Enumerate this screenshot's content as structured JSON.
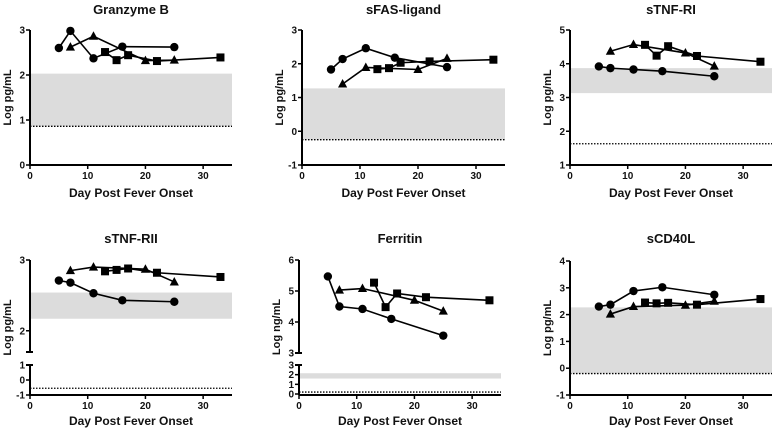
{
  "figure": {
    "series_names": [
      "circle-series",
      "triangle-series",
      "square-series"
    ],
    "colors": {
      "marker": "#000000",
      "band": "#dcdcdc",
      "axis": "#000000",
      "dotted": "#000000"
    }
  },
  "chart_data": [
    {
      "type": "line",
      "title": "Granzyme B",
      "xlabel": "Day Post Fever Onset",
      "ylabel": "Log pg/mL",
      "xlim": [
        0,
        35
      ],
      "xticks": [
        0,
        10,
        20,
        30
      ],
      "ylim": [
        0,
        3
      ],
      "yticks": [
        0,
        1,
        2,
        3
      ],
      "normal_band": [
        0.86,
        2.03
      ],
      "detection_limit": 0.86,
      "series": [
        {
          "name": "circle",
          "marker": "circle",
          "x": [
            5,
            7,
            11,
            16,
            25
          ],
          "y": [
            2.6,
            2.98,
            2.37,
            2.63,
            2.62
          ]
        },
        {
          "name": "triangle",
          "marker": "triangle",
          "x": [
            7,
            11,
            20,
            25
          ],
          "y": [
            2.62,
            2.86,
            2.32,
            2.33
          ]
        },
        {
          "name": "square",
          "marker": "square",
          "x": [
            13,
            15,
            17,
            22,
            33
          ],
          "y": [
            2.51,
            2.33,
            2.44,
            2.31,
            2.39
          ]
        }
      ]
    },
    {
      "type": "line",
      "title": "sFAS-ligand",
      "xlabel": "Day Post Fever Onset",
      "ylabel": "Log pg/mL",
      "xlim": [
        0,
        35
      ],
      "xticks": [
        0,
        10,
        20,
        30
      ],
      "ylim": [
        -1,
        3
      ],
      "yticks": [
        -1,
        0,
        1,
        2,
        3
      ],
      "normal_band": [
        -0.25,
        1.27
      ],
      "detection_limit": -0.25,
      "series": [
        {
          "name": "circle",
          "marker": "circle",
          "x": [
            5,
            7,
            11,
            16,
            25
          ],
          "y": [
            1.83,
            2.14,
            2.46,
            2.18,
            1.9
          ]
        },
        {
          "name": "triangle",
          "marker": "triangle",
          "x": [
            7,
            11,
            20,
            25
          ],
          "y": [
            1.4,
            1.89,
            1.83,
            2.16
          ]
        },
        {
          "name": "square",
          "marker": "square",
          "x": [
            13,
            15,
            17,
            22,
            33
          ],
          "y": [
            1.84,
            1.87,
            2.03,
            2.07,
            2.12
          ]
        }
      ]
    },
    {
      "type": "line",
      "title": "sTNF-RI",
      "xlabel": "Day Post Fever Onset",
      "ylabel": "Log pg/mL",
      "xlim": [
        0,
        35
      ],
      "xticks": [
        0,
        10,
        20,
        30
      ],
      "ylim": [
        1,
        5
      ],
      "yticks": [
        1,
        2,
        3,
        4,
        5
      ],
      "normal_band": [
        3.13,
        3.87
      ],
      "detection_limit": 1.63,
      "series": [
        {
          "name": "circle",
          "marker": "circle",
          "x": [
            5,
            7,
            11,
            16,
            25
          ],
          "y": [
            3.92,
            3.87,
            3.83,
            3.78,
            3.63
          ]
        },
        {
          "name": "triangle",
          "marker": "triangle",
          "x": [
            7,
            11,
            20,
            25
          ],
          "y": [
            4.37,
            4.57,
            4.32,
            3.93
          ]
        },
        {
          "name": "square",
          "marker": "square",
          "x": [
            13,
            15,
            17,
            22,
            33
          ],
          "y": [
            4.56,
            4.24,
            4.52,
            4.23,
            4.06
          ]
        }
      ]
    },
    {
      "type": "line",
      "title": "sTNF-RII",
      "xlabel": "Day Post Fever Onset",
      "ylabel": "Log pg/mL",
      "xlim": [
        0,
        35
      ],
      "xticks": [
        0,
        10,
        20,
        30
      ],
      "broken_axis": true,
      "ylim_upper": [
        1.7,
        3
      ],
      "yticks_upper": [
        2,
        3
      ],
      "ylim_lower": [
        -1,
        1
      ],
      "yticks_lower": [
        -1,
        0,
        1
      ],
      "normal_band": [
        2.17,
        2.54
      ],
      "detection_limit": -0.55,
      "series": [
        {
          "name": "circle",
          "marker": "circle",
          "x": [
            5,
            7,
            11,
            16,
            25
          ],
          "y": [
            2.71,
            2.68,
            2.53,
            2.43,
            2.41
          ]
        },
        {
          "name": "triangle",
          "marker": "triangle",
          "x": [
            7,
            11,
            20,
            25
          ],
          "y": [
            2.85,
            2.9,
            2.87,
            2.69
          ]
        },
        {
          "name": "square",
          "marker": "square",
          "x": [
            13,
            15,
            17,
            22,
            33
          ],
          "y": [
            2.84,
            2.86,
            2.88,
            2.82,
            2.76
          ]
        }
      ]
    },
    {
      "type": "line",
      "title": "Ferritin",
      "xlabel": "Day Post Fever Onset",
      "ylabel": "Log ng/mL",
      "xlim": [
        0,
        35
      ],
      "xticks": [
        0,
        10,
        20,
        30
      ],
      "broken_axis": true,
      "ylim_upper": [
        3,
        6
      ],
      "yticks_upper": [
        3,
        4,
        5,
        6
      ],
      "ylim_lower": [
        0,
        3
      ],
      "yticks_lower": [
        0,
        1,
        2,
        3
      ],
      "normal_band": [
        1.6,
        2.15
      ],
      "detection_limit": 0.2,
      "series": [
        {
          "name": "circle",
          "marker": "circle",
          "x": [
            5,
            7,
            11,
            16,
            25
          ],
          "y": [
            5.47,
            4.5,
            4.42,
            4.1,
            3.56
          ]
        },
        {
          "name": "triangle",
          "marker": "triangle",
          "x": [
            7,
            11,
            20,
            25
          ],
          "y": [
            5.03,
            5.08,
            4.7,
            4.35
          ]
        },
        {
          "name": "square",
          "marker": "square",
          "x": [
            13,
            15,
            17,
            22,
            33
          ],
          "y": [
            5.27,
            4.48,
            4.92,
            4.8,
            4.7
          ]
        }
      ]
    },
    {
      "type": "line",
      "title": "sCD40L",
      "xlabel": "Day Post Fever Onset",
      "ylabel": "Log pg/mL",
      "xlim": [
        0,
        35
      ],
      "xticks": [
        0,
        10,
        20,
        30
      ],
      "ylim": [
        -1,
        4
      ],
      "yticks": [
        -1,
        0,
        1,
        2,
        3,
        4
      ],
      "normal_band": [
        -0.2,
        2.27
      ],
      "detection_limit": -0.2,
      "series": [
        {
          "name": "circle",
          "marker": "circle",
          "x": [
            5,
            7,
            11,
            16,
            25
          ],
          "y": [
            2.3,
            2.37,
            2.88,
            3.02,
            2.74
          ]
        },
        {
          "name": "triangle",
          "marker": "triangle",
          "x": [
            7,
            11,
            20,
            25
          ],
          "y": [
            2.02,
            2.3,
            2.35,
            2.5
          ]
        },
        {
          "name": "square",
          "marker": "square",
          "x": [
            13,
            15,
            17,
            22,
            33
          ],
          "y": [
            2.45,
            2.42,
            2.44,
            2.37,
            2.58
          ]
        }
      ]
    }
  ]
}
